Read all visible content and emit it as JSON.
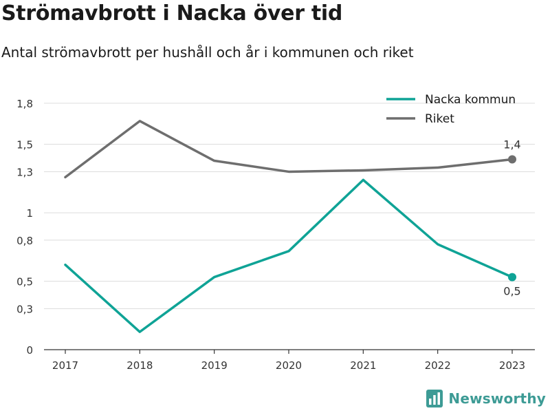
{
  "title": "Strömavbrott i Nacka över tid",
  "subtitle": "Antal strömavbrott per hushåll och år i kommunen och riket",
  "brand": {
    "name": "Newsworthy",
    "color": "#3d9b95",
    "icon": "bar-chart-logo-icon"
  },
  "chart_data": {
    "type": "line",
    "title": "Strömavbrott i Nacka över tid",
    "subtitle": "Antal strömavbrott per hushåll och år i kommunen och riket",
    "xlabel": "",
    "ylabel": "",
    "x": [
      "2017",
      "2018",
      "2019",
      "2020",
      "2021",
      "2022",
      "2023"
    ],
    "ylim": [
      0,
      1.8
    ],
    "yticks": [
      0,
      0.3,
      0.5,
      0.8,
      1,
      1.3,
      1.5,
      1.8
    ],
    "ytick_labels": [
      "0",
      "0,3",
      "0,5",
      "0,8",
      "1",
      "1,3",
      "1,5",
      "1,8"
    ],
    "grid": true,
    "legend_position": "top-right",
    "series": [
      {
        "name": "Nacka kommun",
        "color": "#0fa396",
        "values": [
          0.62,
          0.13,
          0.53,
          0.72,
          1.24,
          0.77,
          0.53
        ],
        "end_label": "0,5"
      },
      {
        "name": "Riket",
        "color": "#6e6e6e",
        "values": [
          1.26,
          1.67,
          1.38,
          1.3,
          1.31,
          1.33,
          1.39
        ],
        "end_label": "1,4"
      }
    ]
  }
}
